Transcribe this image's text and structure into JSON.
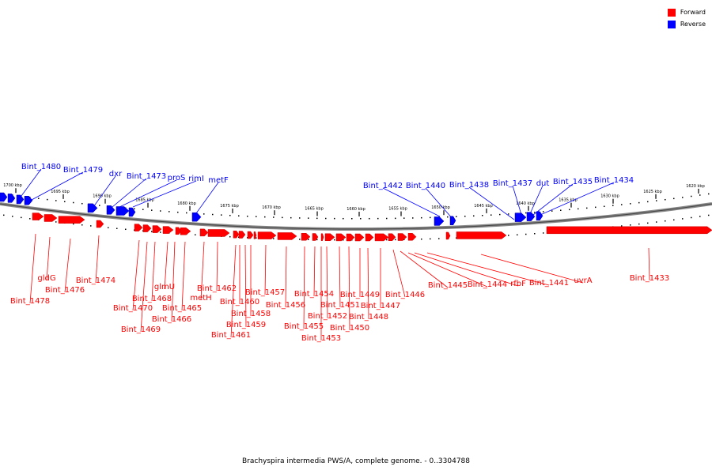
{
  "legend": {
    "forward": "Forward",
    "reverse": "Reverse",
    "forward_color": "#ff0000",
    "reverse_color": "#0000ff"
  },
  "footer": "Brachyspira intermedia PWS/A, complete genome. - 0..3304788",
  "ticks": [
    "1700 kbp",
    "1695 kbp",
    "1690 kbp",
    "1685 kbp",
    "1680 kbp",
    "1675 kbp",
    "1670 kbp",
    "1665 kbp",
    "1660 kbp",
    "1655 kbp",
    "1650 kbp",
    "1645 kbp",
    "1640 kbp",
    "1635 kbp",
    "1630 kbp",
    "1625 kbp",
    "1620 kbp"
  ],
  "reverse_genes": [
    "Bint_1480",
    "Bint_1479",
    "dxr",
    "Bint_1473",
    "proS",
    "rimI",
    "metF",
    "Bint_1442",
    "Bint_1440",
    "Bint_1438",
    "Bint_1437",
    "dut",
    "Bint_1435",
    "Bint_1434"
  ],
  "forward_genes": [
    "Bint_1478",
    "gldG",
    "Bint_1476",
    "Bint_1474",
    "Bint_1470",
    "Bint_1469",
    "Bint_1468",
    "glmU",
    "Bint_1466",
    "Bint_1465",
    "metH",
    "Bint_1462",
    "Bint_1461",
    "Bint_1460",
    "Bint_1459",
    "Bint_1458",
    "Bint_1457",
    "Bint_1456",
    "Bint_1455",
    "Bint_1454",
    "Bint_1453",
    "Bint_1452",
    "Bint_1451",
    "Bint_1450",
    "Bint_1449",
    "Bint_1448",
    "Bint_1447",
    "Bint_1446",
    "Bint_1445",
    "Bint_1444",
    "rfbF",
    "Bint_1441",
    "uvrA",
    "Bint_1433"
  ]
}
